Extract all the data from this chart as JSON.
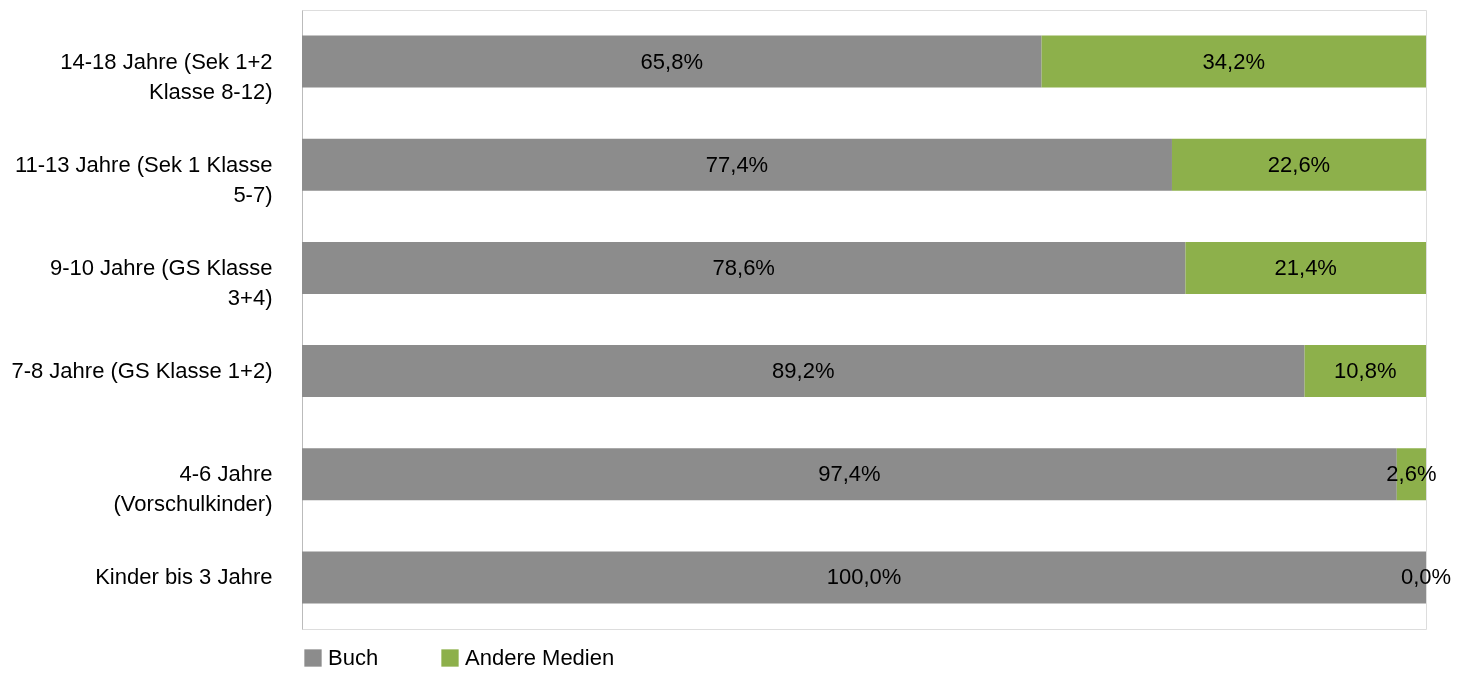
{
  "chart_data": {
    "type": "bar",
    "orientation": "horizontal",
    "stacked": true,
    "categories": [
      "14-18 Jahre (Sek 1+2 Klasse 8-12)",
      "11-13 Jahre (Sek 1 Klasse 5-7)",
      "9-10 Jahre (GS Klasse 3+4)",
      "7-8 Jahre (GS Klasse 1+2)",
      "4-6 Jahre (Vorschulkinder)",
      "Kinder bis 3 Jahre"
    ],
    "series": [
      {
        "name": "Buch",
        "color": "#8c8c8c",
        "values": [
          65.8,
          77.4,
          78.6,
          89.2,
          97.4,
          100.0
        ],
        "value_labels": [
          "65,8%",
          "77,4%",
          "78,6%",
          "89,2%",
          "97,4%",
          "100,0%"
        ]
      },
      {
        "name": "Andere Medien",
        "color": "#8db04b",
        "values": [
          34.2,
          22.6,
          21.4,
          10.8,
          2.6,
          0.0
        ],
        "value_labels": [
          "34,2%",
          "22,6%",
          "21,4%",
          "10,8%",
          "2,6%",
          "0,0%"
        ]
      }
    ],
    "legend": "bottom",
    "grid": false
  }
}
